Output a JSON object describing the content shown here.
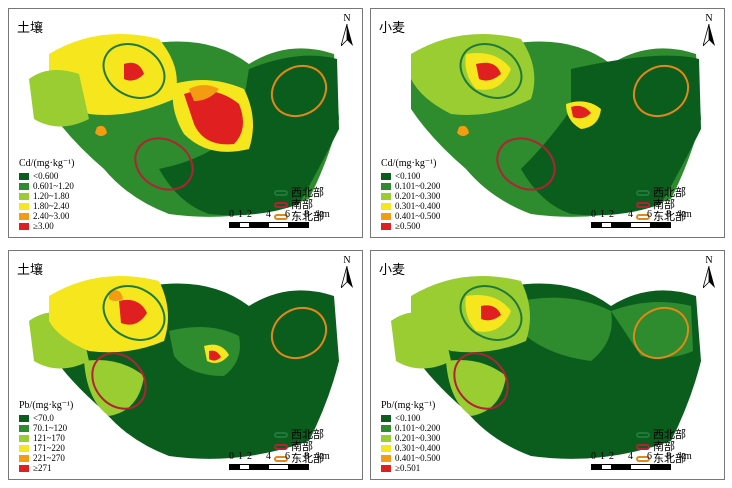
{
  "panels": [
    {
      "title": "土壤",
      "legend_title": "Cd/(mg·kg⁻¹)",
      "classes": [
        {
          "label": "<0.600",
          "color": "#0b5d1e"
        },
        {
          "label": "0.601~1.20",
          "color": "#2e8b2e"
        },
        {
          "label": "1.20~1.80",
          "color": "#9acd32"
        },
        {
          "label": "1.80~2.40",
          "color": "#f5e61e"
        },
        {
          "label": "2.40~3.00",
          "color": "#f39c12"
        },
        {
          "label": "≥3.00",
          "color": "#e02020"
        }
      ]
    },
    {
      "title": "小麦",
      "legend_title": "Cd/(mg·kg⁻¹)",
      "classes": [
        {
          "label": "<0.100",
          "color": "#0b5d1e"
        },
        {
          "label": "0.101~0.200",
          "color": "#2e8b2e"
        },
        {
          "label": "0.201~0.300",
          "color": "#9acd32"
        },
        {
          "label": "0.301~0.400",
          "color": "#f5e61e"
        },
        {
          "label": "0.401~0.500",
          "color": "#f39c12"
        },
        {
          "label": "≥0.500",
          "color": "#e02020"
        }
      ]
    },
    {
      "title": "土壤",
      "legend_title": "Pb/(mg·kg⁻¹)",
      "classes": [
        {
          "label": "<70.0",
          "color": "#0b5d1e"
        },
        {
          "label": "70.1~120",
          "color": "#2e8b2e"
        },
        {
          "label": "121~170",
          "color": "#9acd32"
        },
        {
          "label": "171~220",
          "color": "#f5e61e"
        },
        {
          "label": "221~270",
          "color": "#f39c12"
        },
        {
          "label": "≥271",
          "color": "#e02020"
        }
      ]
    },
    {
      "title": "小麦",
      "legend_title": "Pb/(mg·kg⁻¹)",
      "classes": [
        {
          "label": "<0.100",
          "color": "#0b5d1e"
        },
        {
          "label": "0.101~0.200",
          "color": "#2e8b2e"
        },
        {
          "label": "0.201~0.300",
          "color": "#9acd32"
        },
        {
          "label": "0.301~0.400",
          "color": "#f5e61e"
        },
        {
          "label": "0.401~0.500",
          "color": "#f39c12"
        },
        {
          "label": "≥0.501",
          "color": "#e02020"
        }
      ]
    }
  ],
  "zones": [
    {
      "label": "西北部",
      "color": "#1f7a3a"
    },
    {
      "label": "南部",
      "color": "#b22234"
    },
    {
      "label": "东北部",
      "color": "#e0891a"
    }
  ],
  "north_label": "N",
  "scale": {
    "ticks": [
      "0",
      "1",
      "2",
      "4",
      "6",
      "8"
    ],
    "unit": "km"
  }
}
